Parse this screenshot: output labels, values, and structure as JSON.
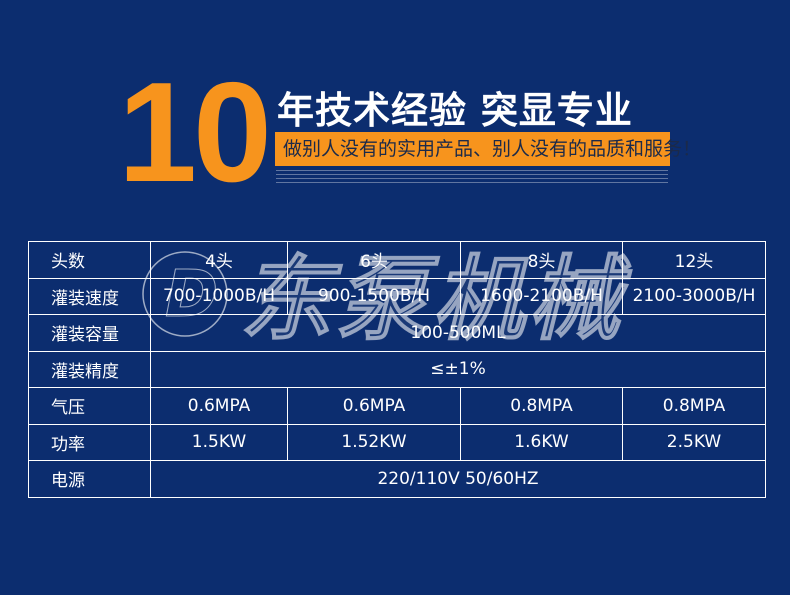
{
  "hero": {
    "number": "10",
    "title": "年技术经验 突显专业",
    "slogan": "做别人没有的实用产品、别人没有的品质和服务！"
  },
  "watermark": "东泵机械",
  "colors": {
    "background": "#0c2d6f",
    "accent": "#f7941d"
  },
  "table": {
    "heads": {
      "label": "头数",
      "values": [
        "4头",
        "6头",
        "8头",
        "12头"
      ]
    },
    "speed": {
      "label": "灌装速度",
      "values": [
        "700-1000B/H",
        "900-1500B/H",
        "1600-2100B/H",
        "2100-3000B/H"
      ]
    },
    "volume": {
      "label": "灌装容量",
      "value": "100-500ML"
    },
    "precision": {
      "label": "灌装精度",
      "value": "≤±1%"
    },
    "pressure": {
      "label": "气压",
      "values": [
        "0.6MPA",
        "0.6MPA",
        "0.8MPA",
        "0.8MPA"
      ]
    },
    "power": {
      "label": "功率",
      "values": [
        "1.5KW",
        "1.52KW",
        "1.6KW",
        "2.5KW"
      ]
    },
    "supply": {
      "label": "电源",
      "value": "220/110V 50/60HZ"
    }
  }
}
